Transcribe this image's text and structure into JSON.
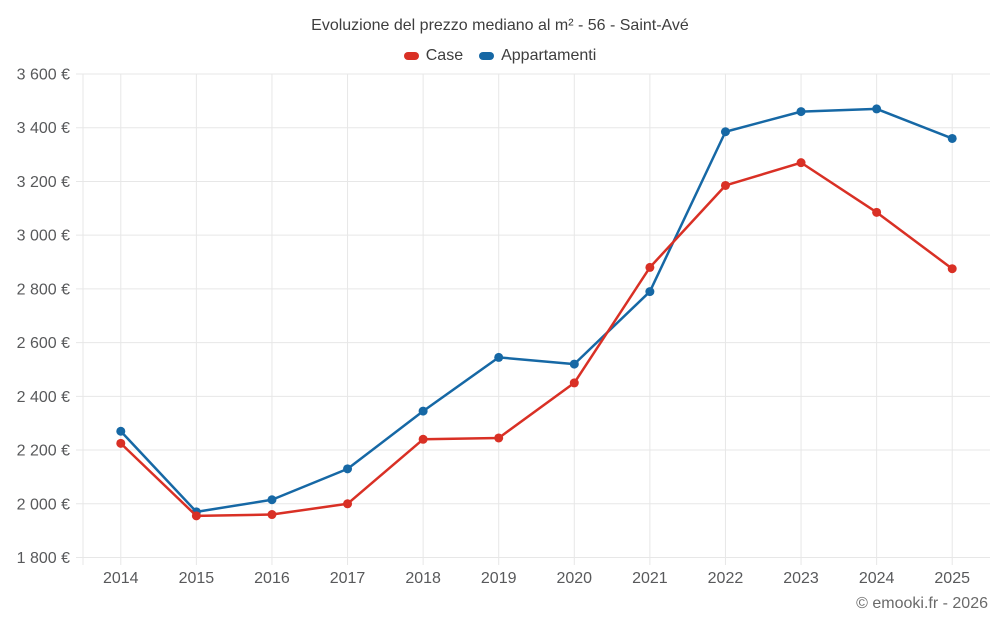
{
  "footer": {
    "copyright": "© emooki.fr - 2026"
  },
  "chart_data": {
    "type": "line",
    "title": "Evoluzione del prezzo mediano al m² - 56 - Saint-Avé",
    "x": [
      "2014",
      "2015",
      "2016",
      "2017",
      "2018",
      "2019",
      "2020",
      "2021",
      "2022",
      "2023",
      "2024",
      "2025"
    ],
    "series": [
      {
        "name": "Case",
        "color": "#d93025",
        "values": [
          2225,
          1955,
          1960,
          2000,
          2240,
          2245,
          2450,
          2880,
          3185,
          3270,
          3085,
          2875
        ]
      },
      {
        "name": "Appartamenti",
        "color": "#1668a5",
        "values": [
          2270,
          1970,
          2015,
          2130,
          2345,
          2545,
          2520,
          2790,
          3385,
          3460,
          3470,
          3360
        ]
      }
    ],
    "ylim": [
      1800,
      3600
    ],
    "y_tick_step": 200,
    "y_suffix": " €",
    "grid": true,
    "gridline_color": "#e7e7e7",
    "legend_position": "top"
  }
}
